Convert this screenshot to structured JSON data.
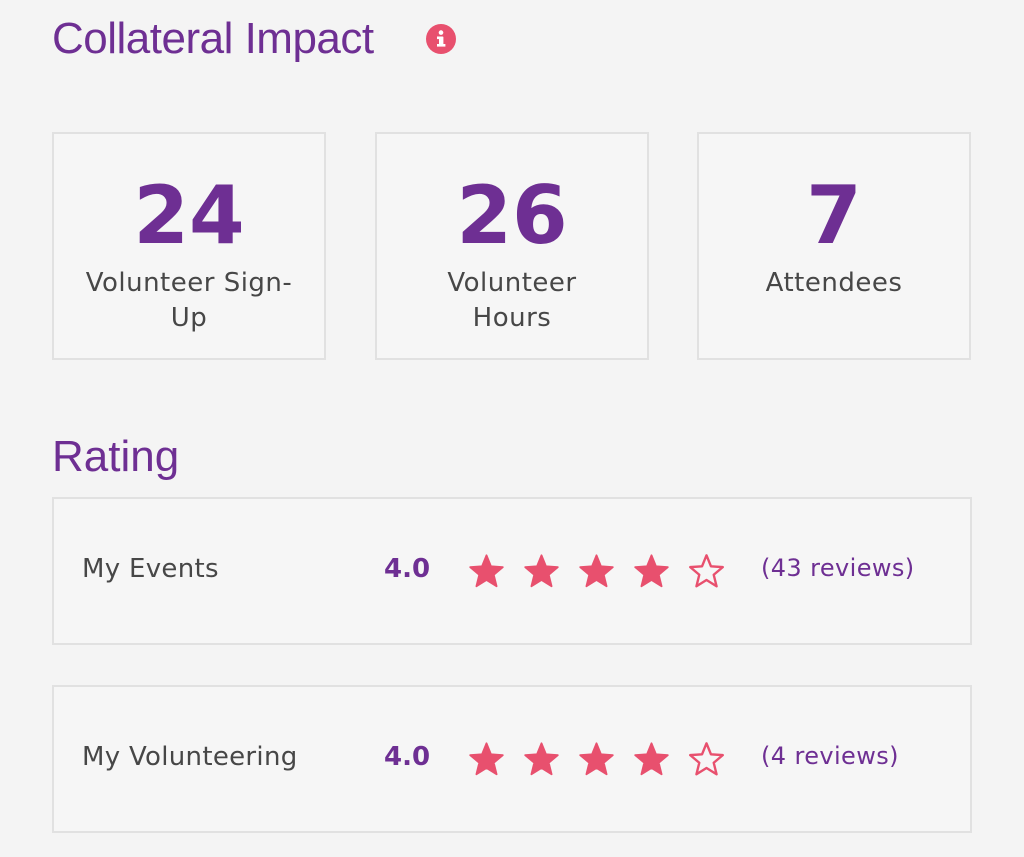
{
  "header": {
    "title": "Collateral Impact",
    "info_icon": "info-icon"
  },
  "stats": [
    {
      "value": "24",
      "label": "Volunteer Sign-Up"
    },
    {
      "value": "26",
      "label": "Volunteer Hours"
    },
    {
      "value": "7",
      "label": "Attendees"
    }
  ],
  "rating": {
    "title": "Rating",
    "rows": [
      {
        "label": "My Events",
        "value": "4.0",
        "stars_filled": 4,
        "stars_total": 5,
        "reviews": "(43 reviews)"
      },
      {
        "label": "My Volunteering",
        "value": "4.0",
        "stars_filled": 4,
        "stars_total": 5,
        "reviews": "(4 reviews)"
      }
    ]
  },
  "colors": {
    "brand_purple": "#6e2f93",
    "accent_pink": "#e8506e",
    "background": "#f4f4f4",
    "border": "#e1e1e1"
  }
}
